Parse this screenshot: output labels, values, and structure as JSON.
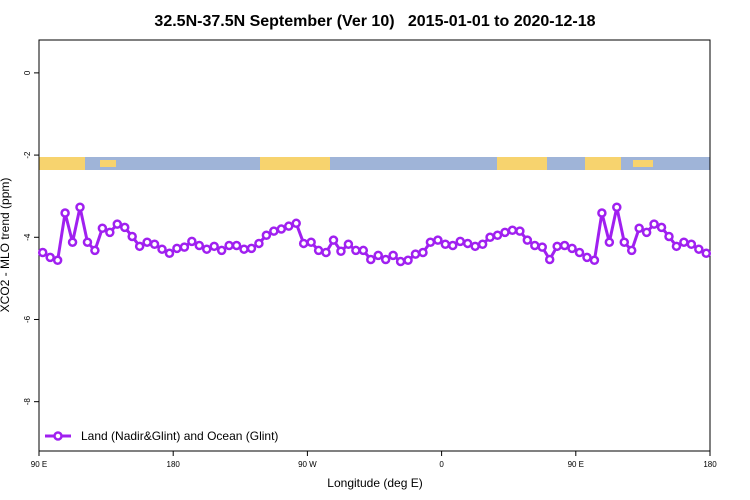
{
  "chart_data": {
    "type": "line",
    "title": "32.5N-37.5N September (Ver 10)   2015-01-01 to 2020-12-18",
    "x_label": "Longitude (deg E)",
    "y_label": "XCO2 - MLO trend (ppm)",
    "xlim": [
      90,
      540
    ],
    "xticks": [
      {
        "value": 90,
        "label": "90 E"
      },
      180,
      {
        "value": 270,
        "label": "90 W"
      },
      {
        "value": 360,
        "label": "0"
      },
      {
        "value": 450,
        "label": "90 E"
      },
      {
        "value": 540,
        "label": "180"
      }
    ],
    "ylim": [
      -9.2,
      0.8
    ],
    "yticks": [
      0,
      -2,
      -4,
      -6,
      -8
    ],
    "legend": "bottom-left",
    "x": [
      92.5,
      97.5,
      102.5,
      107.5,
      112.5,
      117.5,
      122.5,
      127.5,
      132.5,
      137.5,
      142.5,
      147.5,
      152.5,
      157.5,
      162.5,
      167.5,
      172.5,
      177.5,
      182.5,
      187.5,
      192.5,
      197.5,
      202.5,
      207.5,
      212.5,
      217.5,
      222.5,
      227.5,
      232.5,
      237.5,
      242.5,
      247.5,
      252.5,
      257.5,
      262.5,
      267.5,
      272.5,
      277.5,
      282.5,
      287.5,
      292.5,
      297.5,
      302.5,
      307.5,
      312.5,
      317.5,
      322.5,
      327.5,
      332.5,
      337.5,
      342.5,
      347.5,
      352.5,
      357.5,
      362.5,
      367.5,
      372.5,
      377.5,
      382.5,
      387.5,
      392.5,
      397.5,
      402.5,
      407.5,
      412.5,
      417.5,
      422.5,
      427.5,
      432.5,
      437.5,
      442.5,
      447.5,
      452.5,
      457.5,
      462.5,
      467.5,
      472.5,
      477.5,
      482.5,
      487.5,
      492.5,
      497.5,
      502.5,
      507.5,
      512.5,
      517.5,
      522.5,
      527.5,
      532.5,
      537.5
    ],
    "series": [
      {
        "name": "Land (Nadir&Glint) and Ocean (Glint)",
        "color": "#a020f0",
        "values": [
          -4.37,
          -4.49,
          -4.56,
          -3.41,
          -4.12,
          -3.27,
          -4.12,
          -4.32,
          -3.78,
          -3.88,
          -3.68,
          -3.76,
          -3.98,
          -4.22,
          -4.12,
          -4.17,
          -4.29,
          -4.39,
          -4.27,
          -4.24,
          -4.1,
          -4.2,
          -4.29,
          -4.22,
          -4.32,
          -4.2,
          -4.2,
          -4.29,
          -4.27,
          -4.15,
          -3.95,
          -3.85,
          -3.8,
          -3.73,
          -3.66,
          -4.15,
          -4.12,
          -4.32,
          -4.37,
          -4.07,
          -4.34,
          -4.17,
          -4.32,
          -4.32,
          -4.54,
          -4.44,
          -4.54,
          -4.44,
          -4.59,
          -4.56,
          -4.41,
          -4.37,
          -4.12,
          -4.07,
          -4.17,
          -4.2,
          -4.1,
          -4.15,
          -4.22,
          -4.17,
          -4.0,
          -3.95,
          -3.88,
          -3.83,
          -3.85,
          -4.07,
          -4.2,
          -4.24,
          -4.54,
          -4.22,
          -4.2,
          -4.27,
          -4.37,
          -4.49,
          -4.56,
          -3.41,
          -4.12,
          -3.27,
          -4.12,
          -4.32,
          -3.78,
          -3.88,
          -3.68,
          -3.76,
          -3.98,
          -4.22,
          -4.12,
          -4.17,
          -4.29,
          -4.39
        ]
      }
    ]
  }
}
